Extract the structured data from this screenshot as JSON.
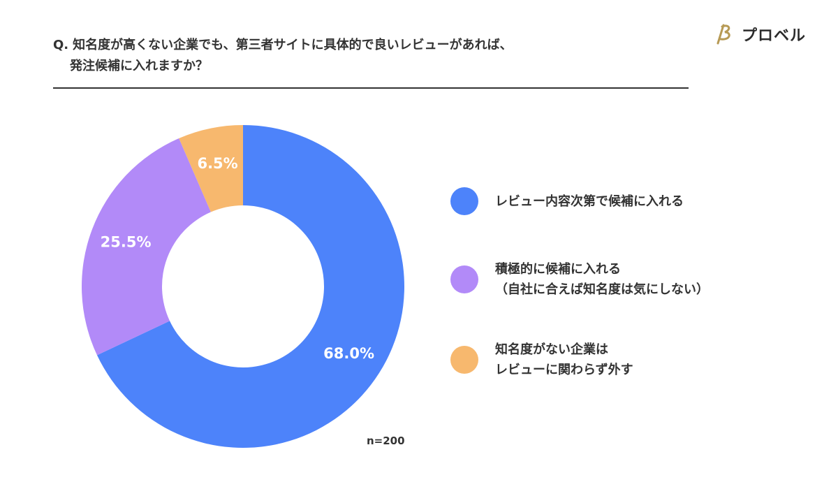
{
  "header": {
    "question_prefix": "Q.",
    "question_line1": "知名度が高くない企業でも、第三者サイトに具体的で良いレビューがあれば、",
    "question_line2": "発注候補に入れますか？",
    "brand": "プロベル"
  },
  "sample_size": "n=200",
  "chart_data": {
    "type": "pie",
    "subtype": "donut",
    "title": "知名度が高くない企業でも、第三者サイトに具体的で良いレビューがあれば、発注候補に入れますか？",
    "categories": [
      "レビュー内容次第で候補に入れる",
      "積極的に候補に入れる（自社に合えば知名度は気にしない）",
      "知名度がない企業はレビューに関わらず外す"
    ],
    "values": [
      68.0,
      25.5,
      6.5
    ],
    "data_labels": [
      "68.0%",
      "25.5%",
      "6.5%"
    ],
    "colors": [
      "#4d83fa",
      "#b28af8",
      "#f7b86e"
    ],
    "legend_position": "right",
    "n": 200
  },
  "legend": {
    "items": [
      {
        "label": "レビュー内容次第で候補に入れる",
        "color": "#4d83fa"
      },
      {
        "label": "積極的に候補に入れる\n（自社に合えば知名度は気にしない）",
        "color": "#b28af8"
      },
      {
        "label": "知名度がない企業は\nレビューに関わらず外す",
        "color": "#f7b86e"
      }
    ]
  }
}
